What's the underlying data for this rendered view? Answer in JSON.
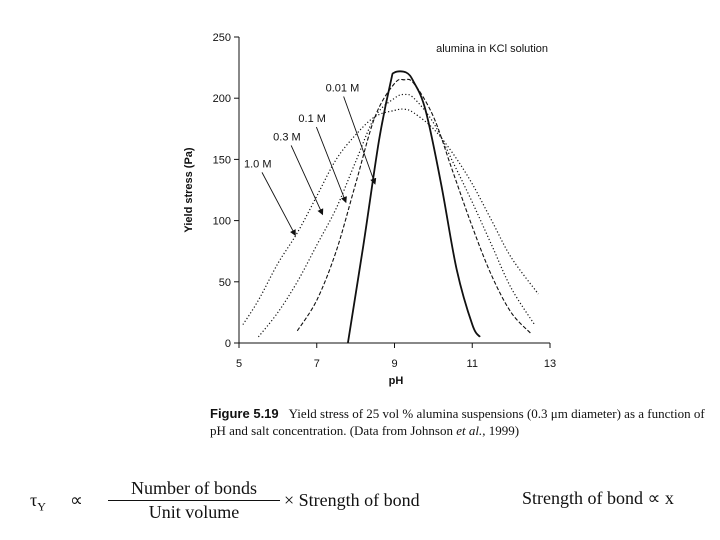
{
  "chart_data": {
    "type": "line",
    "annotation": "alumina in KCl solution",
    "xlabel": "pH",
    "ylabel": "Yield stress (Pa)",
    "xlim": [
      5,
      13
    ],
    "ylim": [
      0,
      250
    ],
    "xticks": [
      5,
      7,
      9,
      11,
      13
    ],
    "yticks": [
      0,
      50,
      100,
      150,
      200,
      250
    ],
    "grid": false,
    "series": [
      {
        "name": "0.01 M",
        "style": "solid",
        "x": [
          7.8,
          8.2,
          8.6,
          8.9,
          9.0,
          9.3,
          9.5,
          9.8,
          10.2,
          10.6,
          11.0,
          11.2
        ],
        "y": [
          0,
          80,
          165,
          213,
          221,
          221,
          213,
          190,
          130,
          60,
          15,
          5
        ]
      },
      {
        "name": "0.1 M",
        "style": "dashed",
        "x": [
          6.5,
          7.0,
          7.5,
          8.0,
          8.5,
          9.0,
          9.25,
          9.5,
          10.0,
          10.5,
          11.0,
          11.5,
          12.0,
          12.5
        ],
        "y": [
          10,
          35,
          75,
          130,
          185,
          212,
          215,
          212,
          185,
          140,
          95,
          55,
          25,
          8
        ]
      },
      {
        "name": "0.3 M",
        "style": "dotted",
        "x": [
          5.5,
          6.0,
          6.5,
          7.0,
          7.5,
          8.0,
          8.5,
          9.0,
          9.25,
          9.5,
          10.0,
          10.5,
          11.0,
          11.5,
          12.0,
          12.6
        ],
        "y": [
          5,
          25,
          50,
          80,
          110,
          148,
          185,
          200,
          203,
          200,
          180,
          148,
          115,
          80,
          45,
          15
        ]
      },
      {
        "name": "1.0 M",
        "style": "dotted",
        "x": [
          5.1,
          5.5,
          6.0,
          6.5,
          7.0,
          7.5,
          8.0,
          8.5,
          9.0,
          9.25,
          9.5,
          10.0,
          10.5,
          11.0,
          11.5,
          12.0,
          12.7
        ],
        "y": [
          15,
          35,
          65,
          90,
          120,
          150,
          170,
          185,
          190,
          191,
          188,
          175,
          155,
          130,
          100,
          70,
          40
        ]
      }
    ],
    "labels": [
      {
        "text": "0.01 M",
        "tip": [
          8.5,
          130
        ]
      },
      {
        "text": "0.1 M",
        "tip": [
          7.75,
          115
        ]
      },
      {
        "text": "0.3 M",
        "tip": [
          7.15,
          105
        ]
      },
      {
        "text": "1.0 M",
        "tip": [
          6.45,
          88
        ]
      }
    ]
  },
  "caption": {
    "figure_label": "Figure 5.19",
    "text_before": "Yield stress of 25 vol % alumina suspensions (0.3 μm diameter) as a function of pH and salt concentration. (Data from Johnson ",
    "et_al": "et al.",
    "text_after": ", 1999)"
  },
  "formula": {
    "lhs": "τ",
    "lhs_sub": "Y",
    "proportional": "∝",
    "numerator": "Number of bonds",
    "denominator": "Unit volume",
    "times_part": "× Strength of bond",
    "right": "Strength of bond ∝ x"
  }
}
